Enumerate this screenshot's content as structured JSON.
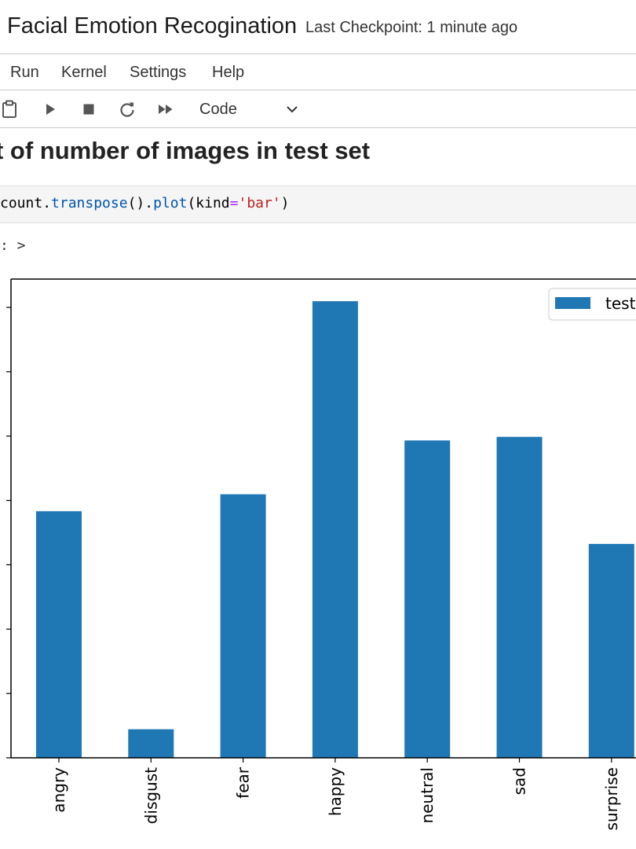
{
  "header": {
    "notebook_title": "Facial Emotion Recogination",
    "checkpoint": "Last Checkpoint: 1 minute ago"
  },
  "menu": {
    "items": [
      "Run",
      "Kernel",
      "Settings",
      "Help"
    ]
  },
  "toolbar": {
    "icons": [
      "clipboard-icon",
      "run-icon",
      "stop-icon",
      "restart-icon",
      "fast-forward-icon"
    ],
    "cell_type": "Code"
  },
  "cells": {
    "markdown_heading": "t of number of images in test set",
    "code": {
      "t1": "count",
      "t2": ".",
      "t3": "transpose",
      "t4": "().",
      "t5": "plot",
      "t6": "(kind",
      "t7": "=",
      "t8": "'bar'",
      "t9": ")"
    },
    "output_prompt": ": >"
  },
  "colors": {
    "bar": "#1f77b4",
    "string": "#ba2121",
    "attribute": "#0055aa"
  },
  "chart_data": {
    "type": "bar",
    "categories": [
      "angry",
      "disgust",
      "fear",
      "happy",
      "neutral",
      "sad",
      "surprise"
    ],
    "series": [
      {
        "name": "test",
        "values": [
          958,
          111,
          1024,
          1774,
          1233,
          1247,
          831
        ]
      }
    ],
    "ylim": [
      0,
      1860
    ],
    "legend": "top-right",
    "grid": false
  }
}
